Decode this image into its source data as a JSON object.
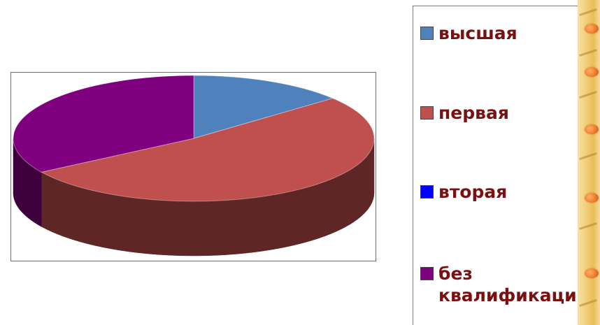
{
  "chart_data": {
    "type": "pie",
    "style": "3d",
    "title": "",
    "categories": [
      "высшая",
      "первая",
      "вторая",
      "без квалификации"
    ],
    "values": [
      14,
      52,
      0,
      34
    ],
    "colors": [
      "#4f81bd",
      "#c0504d",
      "#0000ff",
      "#7f007f"
    ],
    "side_colors": [
      "#2f4f73",
      "#5f2626",
      "#000080",
      "#3d003d"
    ],
    "legend_position": "right",
    "legend_text_color": "#7a1010"
  },
  "decor": {
    "icon": "orange-bead-border-icon"
  }
}
